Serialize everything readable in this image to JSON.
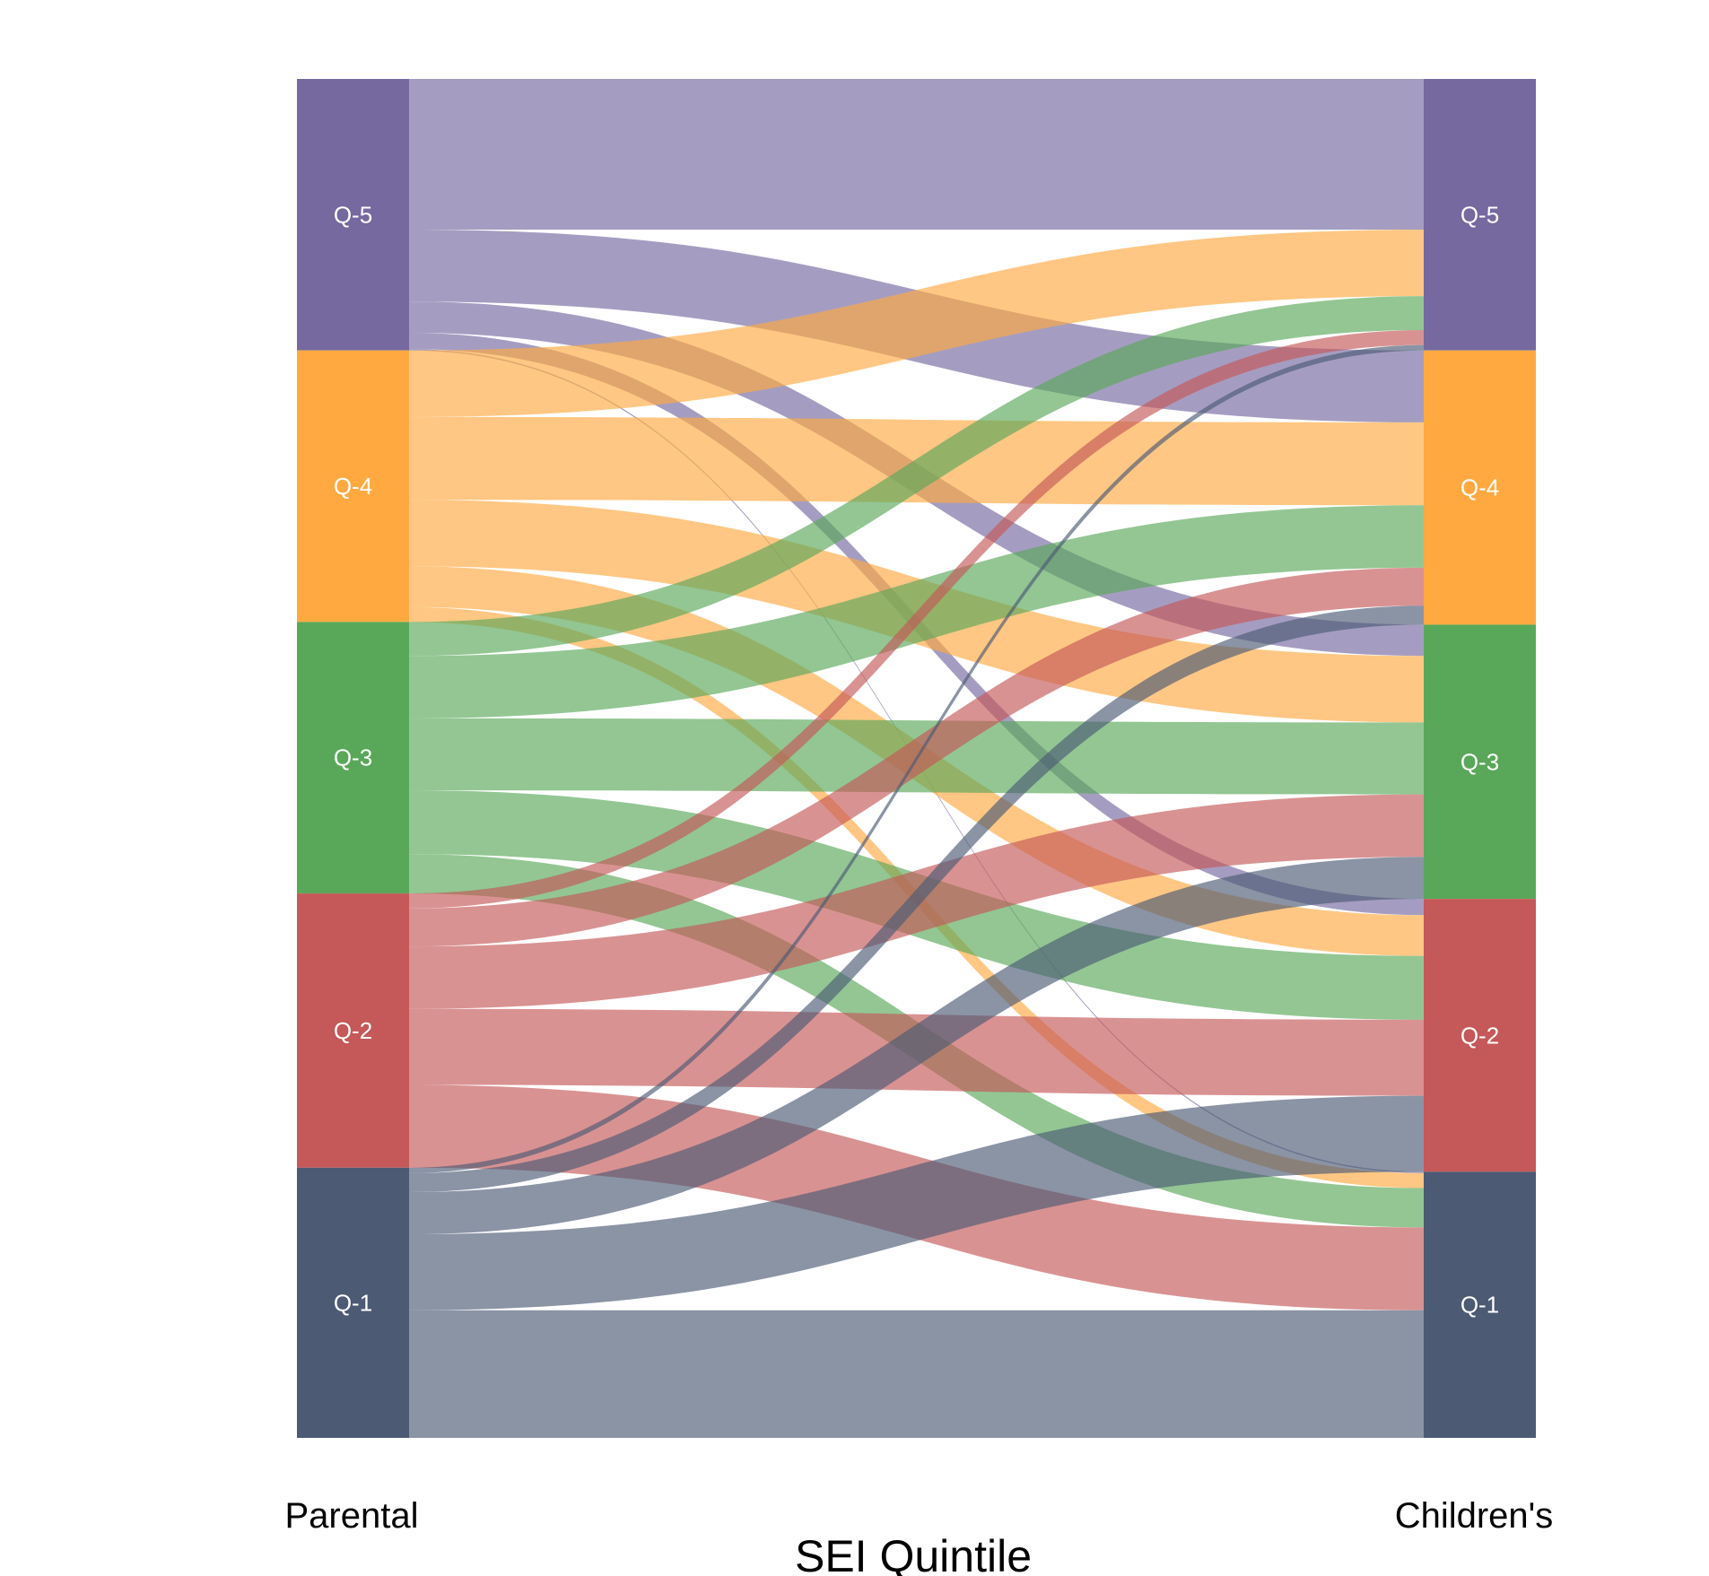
{
  "chart_data": {
    "type": "alluvial",
    "xlabel": "SEI Quintile",
    "axes": [
      "Parental",
      "Children's"
    ],
    "categories": [
      "Q-5",
      "Q-4",
      "Q-3",
      "Q-2",
      "Q-1"
    ],
    "colors": {
      "Q-5": "#75699f",
      "Q-4": "#ffa940",
      "Q-3": "#59a859",
      "Q-2": "#c55858",
      "Q-1": "#4c5a74"
    },
    "flow_opacity": 0.65,
    "flows": [
      {
        "from": "Q-5",
        "to": "Q-5",
        "value": 11.1
      },
      {
        "from": "Q-5",
        "to": "Q-4",
        "value": 5.3
      },
      {
        "from": "Q-5",
        "to": "Q-3",
        "value": 2.3
      },
      {
        "from": "Q-5",
        "to": "Q-2",
        "value": 1.2
      },
      {
        "from": "Q-5",
        "to": "Q-1",
        "value": 0.1
      },
      {
        "from": "Q-4",
        "to": "Q-5",
        "value": 4.9
      },
      {
        "from": "Q-4",
        "to": "Q-4",
        "value": 6.1
      },
      {
        "from": "Q-4",
        "to": "Q-3",
        "value": 4.9
      },
      {
        "from": "Q-4",
        "to": "Q-2",
        "value": 3.0
      },
      {
        "from": "Q-4",
        "to": "Q-1",
        "value": 1.1
      },
      {
        "from": "Q-3",
        "to": "Q-5",
        "value": 2.5
      },
      {
        "from": "Q-3",
        "to": "Q-4",
        "value": 4.6
      },
      {
        "from": "Q-3",
        "to": "Q-3",
        "value": 5.3
      },
      {
        "from": "Q-3",
        "to": "Q-2",
        "value": 4.7
      },
      {
        "from": "Q-3",
        "to": "Q-1",
        "value": 2.9
      },
      {
        "from": "Q-2",
        "to": "Q-5",
        "value": 1.1
      },
      {
        "from": "Q-2",
        "to": "Q-4",
        "value": 2.8
      },
      {
        "from": "Q-2",
        "to": "Q-3",
        "value": 4.6
      },
      {
        "from": "Q-2",
        "to": "Q-2",
        "value": 5.6
      },
      {
        "from": "Q-2",
        "to": "Q-1",
        "value": 6.1
      },
      {
        "from": "Q-1",
        "to": "Q-5",
        "value": 0.4
      },
      {
        "from": "Q-1",
        "to": "Q-4",
        "value": 1.4
      },
      {
        "from": "Q-1",
        "to": "Q-3",
        "value": 3.1
      },
      {
        "from": "Q-1",
        "to": "Q-2",
        "value": 5.6
      },
      {
        "from": "Q-1",
        "to": "Q-1",
        "value": 9.4
      }
    ]
  }
}
